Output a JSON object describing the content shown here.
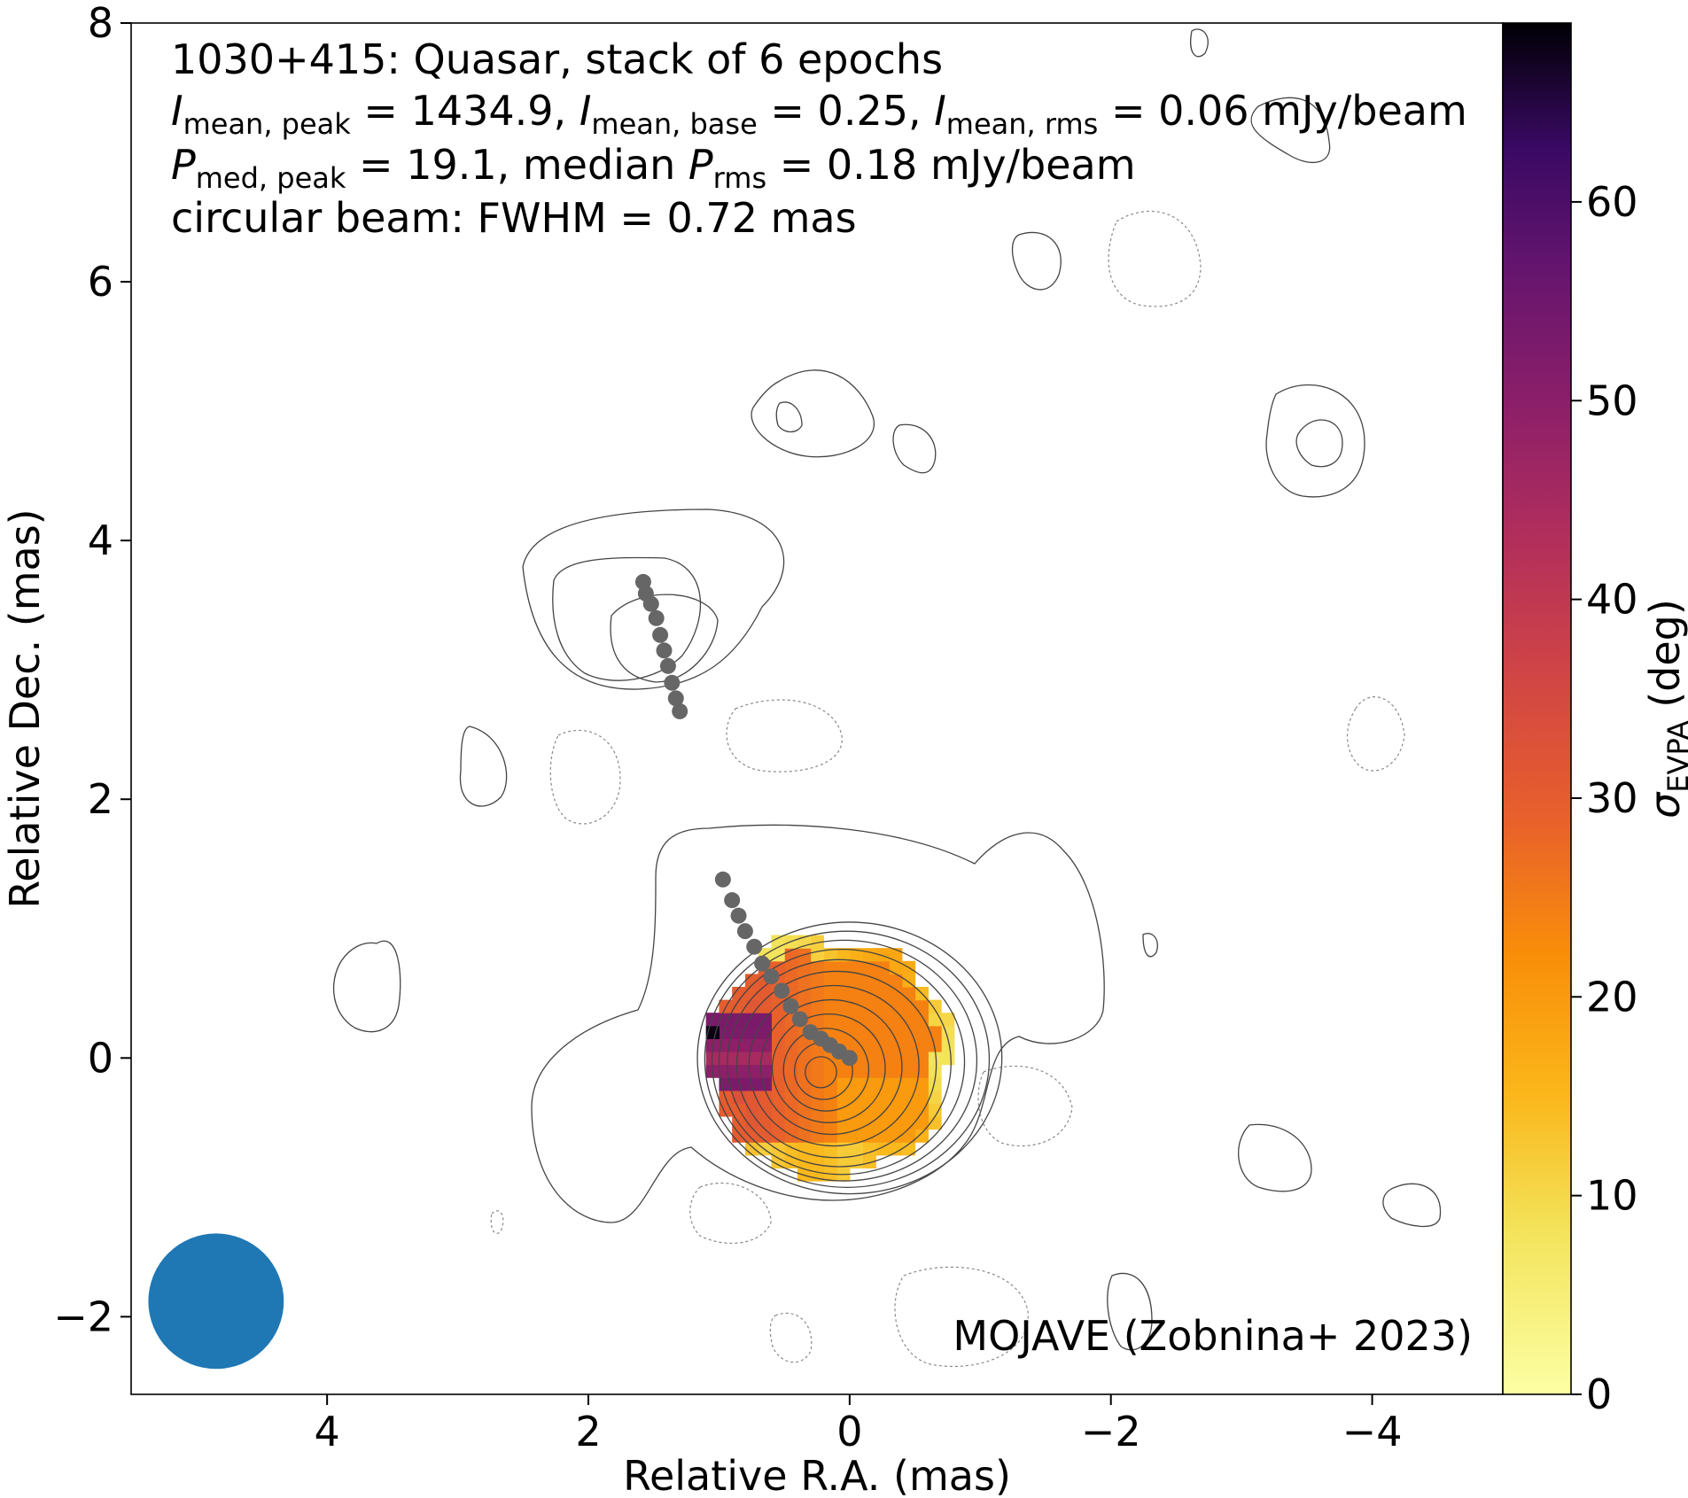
{
  "chart_data": {
    "type": "heatmap",
    "annotations": {
      "line1": "1030+415: Quasar, stack of 6 epochs",
      "line2": {
        "sym1": "I",
        "sub1": "mean, peak",
        "val1": " = 1434.9, ",
        "sym2": "I",
        "sub2": "mean, base",
        "val2": " = 0.25, ",
        "sym3": "I",
        "sub3": "mean, rms",
        "val3": " = 0.06 mJy/beam"
      },
      "line3": {
        "sym1": "P",
        "sub1": "med, peak",
        "val1": " = 19.1, median ",
        "sym2": "P",
        "sub2": "rms",
        "val2": " = 0.18 mJy/beam"
      },
      "line4": "circular beam: FWHM = 0.72 mas",
      "credit": "MOJAVE (Zobnina+ 2023)"
    },
    "xlabel": "Relative R.A. (mas)",
    "ylabel": "Relative Dec. (mas)",
    "colorbar_label": {
      "sym": "σ",
      "sub": "EVPA",
      "rest": " (deg)"
    },
    "xlim": [
      5.5,
      -5.0
    ],
    "ylim": [
      -2.6,
      8.0
    ],
    "x_ticks": [
      4,
      2,
      0,
      -2,
      -4
    ],
    "y_ticks": [
      -2,
      0,
      2,
      4,
      6,
      8
    ],
    "x_tick_labels": [
      "4",
      "2",
      "0",
      "−2",
      "−4"
    ],
    "y_tick_labels": [
      "−2",
      "0",
      "2",
      "4",
      "6",
      "8"
    ],
    "colorbar_range": [
      0,
      69
    ],
    "colorbar_ticks": [
      0,
      10,
      20,
      30,
      40,
      50,
      60
    ],
    "colorbar_tick_labels": [
      "0",
      "10",
      "20",
      "30",
      "40",
      "50",
      "60"
    ],
    "colormap": "inferno_r",
    "beam": {
      "x": 4.85,
      "y": -1.88,
      "fwhm_mas": 0.72,
      "color": "#1f77b4"
    },
    "ridgelines": [
      {
        "name": "inner ridge",
        "color": "#666666",
        "points": [
          [
            0.0,
            0.0
          ],
          [
            0.08,
            0.05
          ],
          [
            0.15,
            0.1
          ],
          [
            0.22,
            0.15
          ],
          [
            0.3,
            0.2
          ],
          [
            0.38,
            0.3
          ],
          [
            0.45,
            0.4
          ],
          [
            0.52,
            0.52
          ],
          [
            0.6,
            0.63
          ],
          [
            0.67,
            0.73
          ],
          [
            0.73,
            0.86
          ],
          [
            0.8,
            0.98
          ],
          [
            0.85,
            1.1
          ],
          [
            0.9,
            1.22
          ],
          [
            0.97,
            1.38
          ]
        ]
      },
      {
        "name": "outer ridge",
        "color": "#666666",
        "points": [
          [
            1.3,
            2.68
          ],
          [
            1.33,
            2.78
          ],
          [
            1.36,
            2.9
          ],
          [
            1.39,
            3.03
          ],
          [
            1.42,
            3.15
          ],
          [
            1.45,
            3.27
          ],
          [
            1.48,
            3.4
          ],
          [
            1.52,
            3.51
          ],
          [
            1.56,
            3.59
          ],
          [
            1.58,
            3.68
          ]
        ]
      }
    ],
    "core_ring_levels": [
      0.12,
      0.22,
      0.32,
      0.42,
      0.52,
      0.62,
      0.72,
      0.8,
      0.87,
      0.93,
      0.99,
      1.05
    ]
  }
}
